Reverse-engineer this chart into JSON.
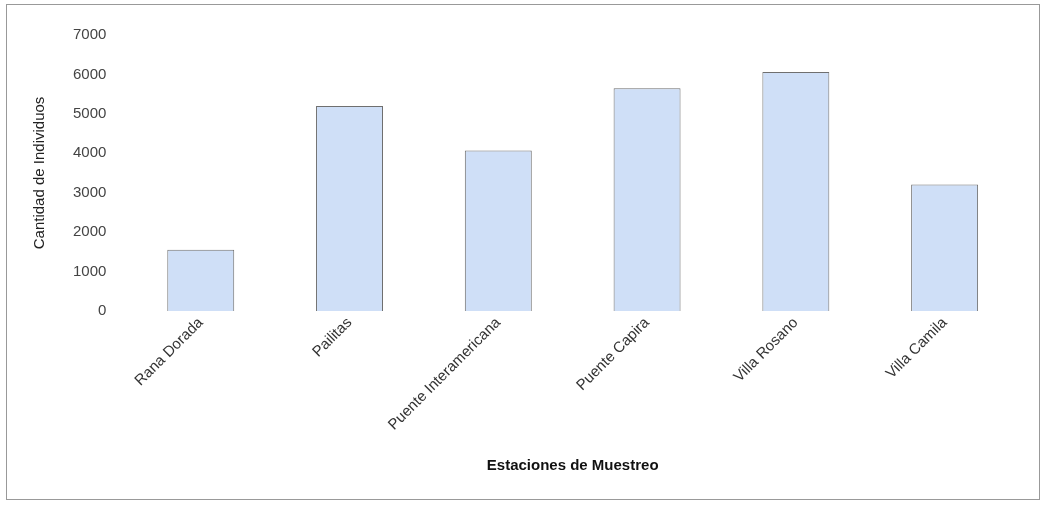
{
  "chart_data": {
    "type": "bar",
    "xlabel": "Estaciones de Muestreo",
    "ylabel": "Cantidad de Individuos",
    "categories": [
      "Rana Dorada",
      "Pailitas",
      "Puente Interamericana",
      "Puente Capira",
      "Villa Rosano",
      "Villa Camila"
    ],
    "values": [
      1550,
      5200,
      4070,
      5650,
      6060,
      3210
    ],
    "color": "#cfdff7",
    "ylim": [
      0,
      7000
    ],
    "yticks": [
      0,
      1000,
      2000,
      3000,
      4000,
      5000,
      6000,
      7000
    ],
    "grid": false,
    "legend": false
  }
}
